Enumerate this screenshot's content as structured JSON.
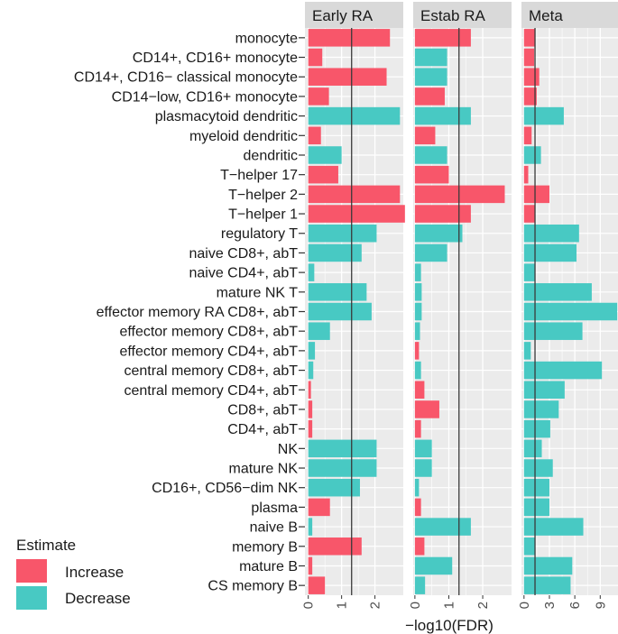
{
  "chart_data": {
    "type": "bar",
    "orientation": "horizontal",
    "xlabel": "−log10(FDR)",
    "ylabel": "",
    "categories": [
      "monocyte",
      "CD14+, CD16+ monocyte",
      "CD14+, CD16− classical monocyte",
      "CD14−low, CD16+ monocyte",
      "plasmacytoid dendritic",
      "myeloid dendritic",
      "dendritic",
      "T−helper 17",
      "T−helper 2",
      "T−helper 1",
      "regulatory T",
      "naive CD8+, abT",
      "naive CD4+, abT",
      "mature NK T",
      "effector memory RA CD8+, abT",
      "effector memory CD8+, abT",
      "effector memory CD4+, abT",
      "central memory CD8+, abT",
      "central memory CD4+, abT",
      "CD8+, abT",
      "CD4+, abT",
      "NK",
      "mature NK",
      "CD16+, CD56−dim NK",
      "plasma",
      "naive B",
      "memory B",
      "mature B",
      "CS memory B"
    ],
    "reference_line": 1.3,
    "legend": {
      "title": "Estimate",
      "position": "bottom-left",
      "entries": [
        {
          "label": "Increase",
          "color": "#F8566A"
        },
        {
          "label": "Decrease",
          "color": "#48C9C3"
        }
      ]
    },
    "panels": [
      {
        "title": "Early RA",
        "xlim": [
          -0.1,
          2.85
        ],
        "ticks": [
          0,
          1,
          2
        ],
        "values": [
          2.45,
          0.42,
          2.35,
          0.62,
          2.75,
          0.38,
          1.0,
          0.9,
          2.75,
          2.9,
          2.05,
          1.6,
          0.18,
          1.75,
          1.9,
          0.65,
          0.2,
          0.15,
          0.08,
          0.12,
          0.12,
          2.05,
          2.05,
          1.55,
          0.65,
          0.12,
          1.6,
          0.12,
          0.5
        ],
        "direction": [
          "Increase",
          "Increase",
          "Increase",
          "Increase",
          "Decrease",
          "Increase",
          "Decrease",
          "Increase",
          "Increase",
          "Increase",
          "Decrease",
          "Decrease",
          "Decrease",
          "Decrease",
          "Decrease",
          "Decrease",
          "Decrease",
          "Decrease",
          "Increase",
          "Increase",
          "Increase",
          "Decrease",
          "Decrease",
          "Decrease",
          "Increase",
          "Decrease",
          "Increase",
          "Increase",
          "Increase"
        ]
      },
      {
        "title": "Estab RA",
        "xlim": [
          -0.05,
          2.85
        ],
        "ticks": [
          0,
          1,
          2
        ],
        "values": [
          1.65,
          0.95,
          0.95,
          0.88,
          1.65,
          0.6,
          0.95,
          1.0,
          2.65,
          1.65,
          1.4,
          0.95,
          0.18,
          0.2,
          0.2,
          0.15,
          0.12,
          0.18,
          0.28,
          0.72,
          0.18,
          0.5,
          0.5,
          0.12,
          0.18,
          1.65,
          0.28,
          1.1,
          0.3
        ],
        "direction": [
          "Increase",
          "Decrease",
          "Decrease",
          "Increase",
          "Decrease",
          "Increase",
          "Decrease",
          "Increase",
          "Increase",
          "Increase",
          "Decrease",
          "Decrease",
          "Decrease",
          "Decrease",
          "Decrease",
          "Decrease",
          "Increase",
          "Decrease",
          "Increase",
          "Increase",
          "Increase",
          "Decrease",
          "Decrease",
          "Decrease",
          "Increase",
          "Decrease",
          "Increase",
          "Decrease",
          "Decrease"
        ]
      },
      {
        "title": "Meta",
        "xlim": [
          -0.3,
          11.1
        ],
        "ticks": [
          0,
          3,
          6,
          9
        ],
        "values": [
          1.3,
          1.2,
          1.8,
          1.5,
          4.7,
          0.9,
          2.0,
          0.5,
          3.0,
          1.3,
          6.5,
          6.2,
          1.3,
          8.0,
          11.0,
          6.9,
          0.8,
          9.2,
          4.8,
          4.1,
          3.1,
          2.1,
          3.4,
          3.0,
          3.0,
          7.0,
          1.3,
          5.7,
          5.5
        ],
        "direction": [
          "Increase",
          "Increase",
          "Increase",
          "Increase",
          "Decrease",
          "Increase",
          "Decrease",
          "Increase",
          "Increase",
          "Increase",
          "Decrease",
          "Decrease",
          "Decrease",
          "Decrease",
          "Decrease",
          "Decrease",
          "Decrease",
          "Decrease",
          "Decrease",
          "Decrease",
          "Decrease",
          "Decrease",
          "Decrease",
          "Decrease",
          "Decrease",
          "Decrease",
          "Decrease",
          "Decrease",
          "Decrease"
        ]
      }
    ]
  }
}
